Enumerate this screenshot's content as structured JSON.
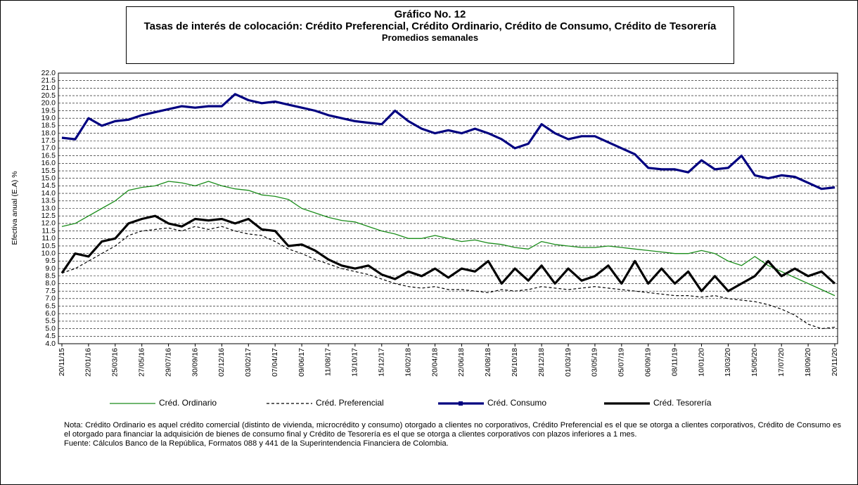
{
  "chart_data": {
    "type": "line",
    "title": "Gráfico No. 12",
    "subtitle": "Tasas de interés de colocación: Crédito Preferencial, Crédito Ordinario, Crédito de Consumo, Crédito de Tesorería",
    "subtitle2": "Promedios semanales",
    "ylabel": "Efectiva anual (E.A) %",
    "note": "Nota: Crédito Ordinario es aquel crédito comercial (distinto de vivienda, microcrédito y consumo) otorgado a clientes no corporativos, Crédito Preferencial es el que se otorga a clientes corporativos, Crédito de Consumo es el otorgado para financiar la adquisición de bienes de consumo final  y Crédito de Tesorería es el que se otorga a clientes corporativos con plazos inferiores a 1 mes.",
    "source": "Fuente: Cálculos Banco de la República, Formatos 088 y 441 de la Superintendencia Financiera de Colombia.",
    "categories": [
      "20/11/15",
      null,
      "22/01/16",
      null,
      "25/03/16",
      null,
      "27/05/16",
      null,
      "29/07/16",
      null,
      "30/09/16",
      null,
      "02/12/16",
      null,
      "03/02/17",
      null,
      "07/04/17",
      null,
      "09/06/17",
      null,
      "11/08/17",
      null,
      "13/10/17",
      null,
      "15/12/17",
      null,
      "16/02/18",
      null,
      "20/04/18",
      null,
      "22/06/18",
      null,
      "24/08/18",
      null,
      "26/10/18",
      null,
      "28/12/18",
      null,
      "01/03/19",
      null,
      "03/05/19",
      null,
      "05/07/19",
      null,
      "06/09/19",
      null,
      "08/11/19",
      null,
      "10/01/20",
      null,
      "13/03/20",
      null,
      "15/05/20",
      null,
      "17/07/20",
      null,
      "18/09/20",
      null,
      "20/11/20"
    ],
    "series": [
      {
        "name": "Créd. Ordinario",
        "color": "#1a8c1a",
        "style": "solid",
        "values": [
          11.8,
          12.0,
          12.5,
          13.0,
          13.5,
          14.2,
          14.4,
          14.5,
          14.8,
          14.7,
          14.5,
          14.8,
          14.5,
          14.3,
          14.2,
          13.9,
          13.8,
          13.6,
          13.0,
          12.7,
          12.4,
          12.2,
          12.1,
          11.8,
          11.5,
          11.3,
          11.0,
          11.0,
          11.2,
          11.0,
          10.8,
          10.9,
          10.7,
          10.6,
          10.4,
          10.3,
          10.8,
          10.6,
          10.5,
          10.4,
          10.4,
          10.5,
          10.4,
          10.3,
          10.2,
          10.1,
          10.0,
          10.0,
          10.2,
          10.0,
          9.5,
          9.2,
          9.8,
          9.2,
          8.8,
          8.4,
          8.0,
          7.6,
          7.2
        ]
      },
      {
        "name": "Créd. Preferencial",
        "color": "#000000",
        "style": "dashed",
        "values": [
          8.7,
          9.0,
          9.5,
          10.0,
          10.5,
          11.2,
          11.5,
          11.6,
          11.7,
          11.5,
          11.8,
          11.6,
          11.8,
          11.5,
          11.3,
          11.2,
          10.8,
          10.3,
          10.0,
          9.6,
          9.3,
          9.0,
          8.8,
          8.6,
          8.3,
          8.0,
          7.8,
          7.7,
          7.8,
          7.6,
          7.6,
          7.5,
          7.4,
          7.6,
          7.5,
          7.6,
          7.8,
          7.7,
          7.6,
          7.7,
          7.8,
          7.7,
          7.6,
          7.5,
          7.4,
          7.3,
          7.2,
          7.2,
          7.1,
          7.2,
          7.0,
          6.9,
          6.8,
          6.6,
          6.3,
          5.9,
          5.3,
          5.0,
          5.1
        ]
      },
      {
        "name": "Créd. Consumo",
        "color": "#000080",
        "style": "thick-marker",
        "values": [
          17.7,
          17.6,
          19.0,
          18.5,
          18.8,
          18.9,
          19.2,
          19.4,
          19.6,
          19.8,
          19.7,
          19.8,
          19.8,
          20.6,
          20.2,
          20.0,
          20.1,
          19.9,
          19.7,
          19.5,
          19.2,
          19.0,
          18.8,
          18.7,
          18.6,
          19.5,
          18.8,
          18.3,
          18.0,
          18.2,
          18.0,
          18.3,
          18.0,
          17.6,
          17.0,
          17.3,
          18.6,
          18.0,
          17.6,
          17.8,
          17.8,
          17.4,
          17.0,
          16.6,
          15.7,
          15.6,
          15.6,
          15.4,
          16.2,
          15.6,
          15.7,
          16.5,
          15.2,
          15.0,
          15.2,
          15.1,
          14.7,
          14.3,
          14.4
        ]
      },
      {
        "name": "Créd. Tesorería",
        "color": "#000000",
        "style": "thick",
        "values": [
          8.7,
          10.0,
          9.8,
          10.8,
          11.0,
          12.0,
          12.3,
          12.5,
          12.0,
          11.8,
          12.3,
          12.2,
          12.3,
          12.0,
          12.3,
          11.6,
          11.5,
          10.5,
          10.6,
          10.2,
          9.6,
          9.2,
          9.0,
          9.2,
          8.6,
          8.3,
          8.8,
          8.5,
          9.0,
          8.4,
          9.0,
          8.8,
          9.5,
          8.0,
          9.0,
          8.2,
          9.2,
          8.0,
          9.0,
          8.2,
          8.5,
          9.2,
          8.0,
          9.5,
          8.0,
          9.0,
          8.0,
          8.8,
          7.5,
          8.5,
          7.5,
          8.0,
          8.5,
          9.5,
          8.5,
          9.0,
          8.5,
          8.8,
          8.0
        ]
      }
    ],
    "ylim": [
      4,
      22
    ],
    "yticks": [
      {
        "value": 4,
        "label": "4.0"
      },
      4.5,
      {
        "value": 5,
        "label": "5.0"
      },
      5.5,
      {
        "value": 6,
        "label": "6.0"
      },
      6.5,
      {
        "value": 7,
        "label": "7.0"
      },
      7.5,
      {
        "value": 8,
        "label": "8.0"
      },
      8.5,
      {
        "value": 9,
        "label": "9.0"
      },
      9.5,
      {
        "value": 10,
        "label": "10.0"
      },
      10.5,
      {
        "value": 11,
        "label": "11.0"
      },
      11.5,
      {
        "value": 12,
        "label": "12.0"
      },
      12.5,
      {
        "value": 13,
        "label": "13.0"
      },
      13.5,
      {
        "value": 14,
        "label": "14.0"
      },
      14.5,
      {
        "value": 15,
        "label": "15.0"
      },
      15.5,
      {
        "value": 16,
        "label": "16.0"
      },
      16.5,
      {
        "value": 17,
        "label": "17.0"
      },
      17.5,
      {
        "value": 18,
        "label": "18.0"
      },
      18.5,
      {
        "value": 19,
        "label": "19.0"
      },
      19.5,
      {
        "value": 20,
        "label": "20.0"
      },
      20.5,
      {
        "value": 21,
        "label": "21.0"
      },
      21.5,
      {
        "value": 22,
        "label": "22.0"
      }
    ],
    "grid": true,
    "legend": "bottom"
  }
}
